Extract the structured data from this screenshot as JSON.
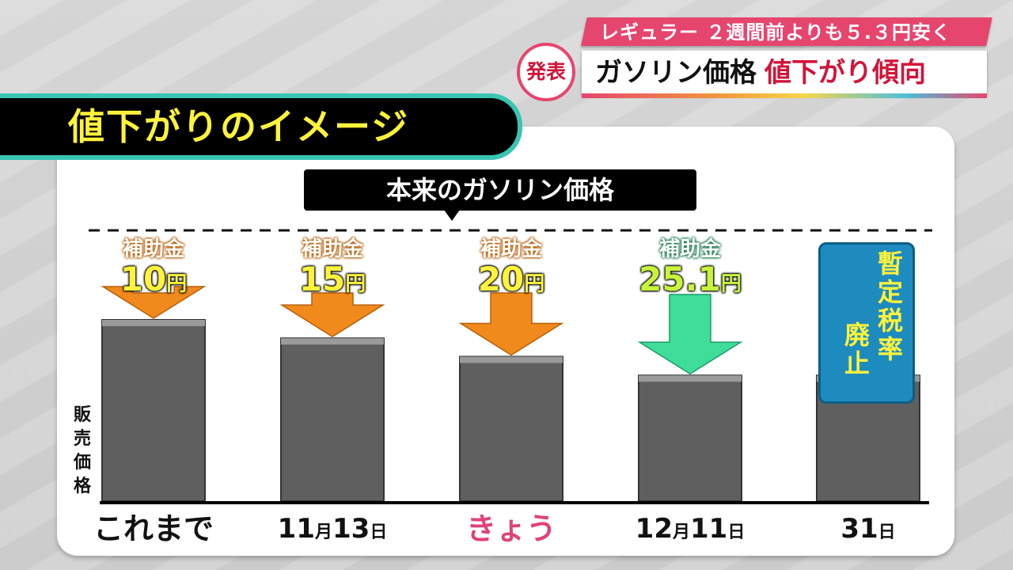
{
  "header": {
    "sub_caption": "レギュラー ２週間前よりも５.３円安く",
    "badge": "発表",
    "title_main": "ガソリン価格",
    "title_accent": "値下がり傾向"
  },
  "panel": {
    "heading": "値下がりのイメージ",
    "original_price_label": "本来のガソリン価格",
    "y_axis_label": "販売価格",
    "tax_box_lines": [
      "暫定税率",
      "廃止"
    ]
  },
  "colors": {
    "arrow_orange": "#f08a1c",
    "arrow_green": "#3fdc9a",
    "bar": "#5f5f5f",
    "highlight_pink": "#e0427a",
    "amount_yellow": "#fff33b",
    "amount_green": "#c8f53a"
  },
  "chart_data": {
    "type": "bar",
    "title": "値下がりのイメージ",
    "ylabel": "販売価格",
    "reference_line": "本来のガソリン価格",
    "categories": [
      {
        "main": "これまで",
        "month": "",
        "month_unit": "",
        "day": "",
        "day_unit": ""
      },
      {
        "main": "",
        "month": "11",
        "month_unit": "月",
        "day": "13",
        "day_unit": "日"
      },
      {
        "main": "きょう",
        "month": "",
        "month_unit": "",
        "day": "",
        "day_unit": ""
      },
      {
        "main": "",
        "month": "12",
        "month_unit": "月",
        "day": "11",
        "day_unit": "日"
      },
      {
        "main": "",
        "month": "",
        "month_unit": "",
        "day": "31",
        "day_unit": "日"
      }
    ],
    "subsidy_name": "補助金",
    "subsidy_unit": "円",
    "subsidies": [
      10,
      15,
      20,
      25.1,
      null
    ],
    "subsidy_labels": [
      "10",
      "15",
      "20",
      "25.1",
      ""
    ],
    "reduction_from_reference": [
      10,
      15,
      20,
      25.1,
      25.1
    ]
  }
}
